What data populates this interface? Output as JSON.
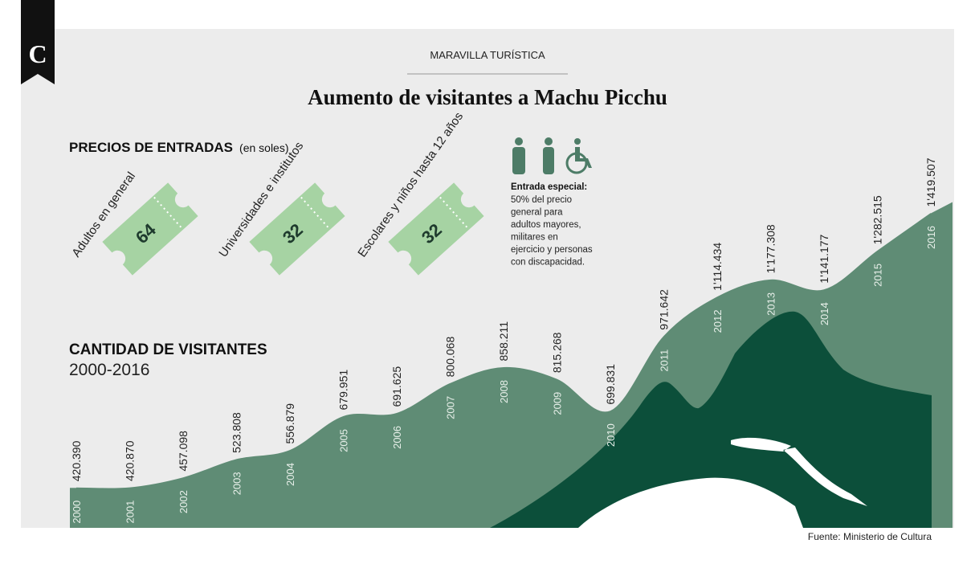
{
  "header": {
    "logo": "C",
    "kicker": "MARAVILLA TURÍSTICA",
    "title": "Aumento de visitantes a Machu Picchu"
  },
  "prices": {
    "title": "PRECIOS DE ENTRADAS",
    "unit": "(en soles)",
    "tickets": [
      {
        "label": "Adultos en general",
        "price": 64
      },
      {
        "label": "Universidades e institutos",
        "price": 32
      },
      {
        "label": "Escolares y niños hasta 12 años",
        "price": 32
      }
    ]
  },
  "special": {
    "title": "Entrada especial:",
    "lines": [
      "50% del precio",
      "general para",
      "adultos mayores,",
      "militares en",
      "ejercicio y personas",
      "con discapacidad."
    ]
  },
  "chart_data": {
    "type": "area",
    "title": "CANTIDAD DE VISITANTES",
    "subtitle": "2000-2016",
    "categories": [
      "2000",
      "2001",
      "2002",
      "2003",
      "2004",
      "2005",
      "2006",
      "2007",
      "2008",
      "2009",
      "2010",
      "2011",
      "2012",
      "2013",
      "2014",
      "2015",
      "2016"
    ],
    "values": [
      420390,
      420870,
      457098,
      523808,
      556879,
      679951,
      691625,
      800068,
      858211,
      815268,
      699831,
      971642,
      1114434,
      1177308,
      1141177,
      1282515,
      1419507
    ],
    "value_labels": [
      "420.390",
      "420.870",
      "457.098",
      "523.808",
      "556.879",
      "679.951",
      "691.625",
      "800.068",
      "858.211",
      "815.268",
      "699.831",
      "971.642",
      "1'114.434",
      "1'177.308",
      "1'141.177",
      "1'282.515",
      "1'419.507"
    ],
    "color": "#5f8c75"
  },
  "source": "Fuente: Ministerio de Cultura"
}
